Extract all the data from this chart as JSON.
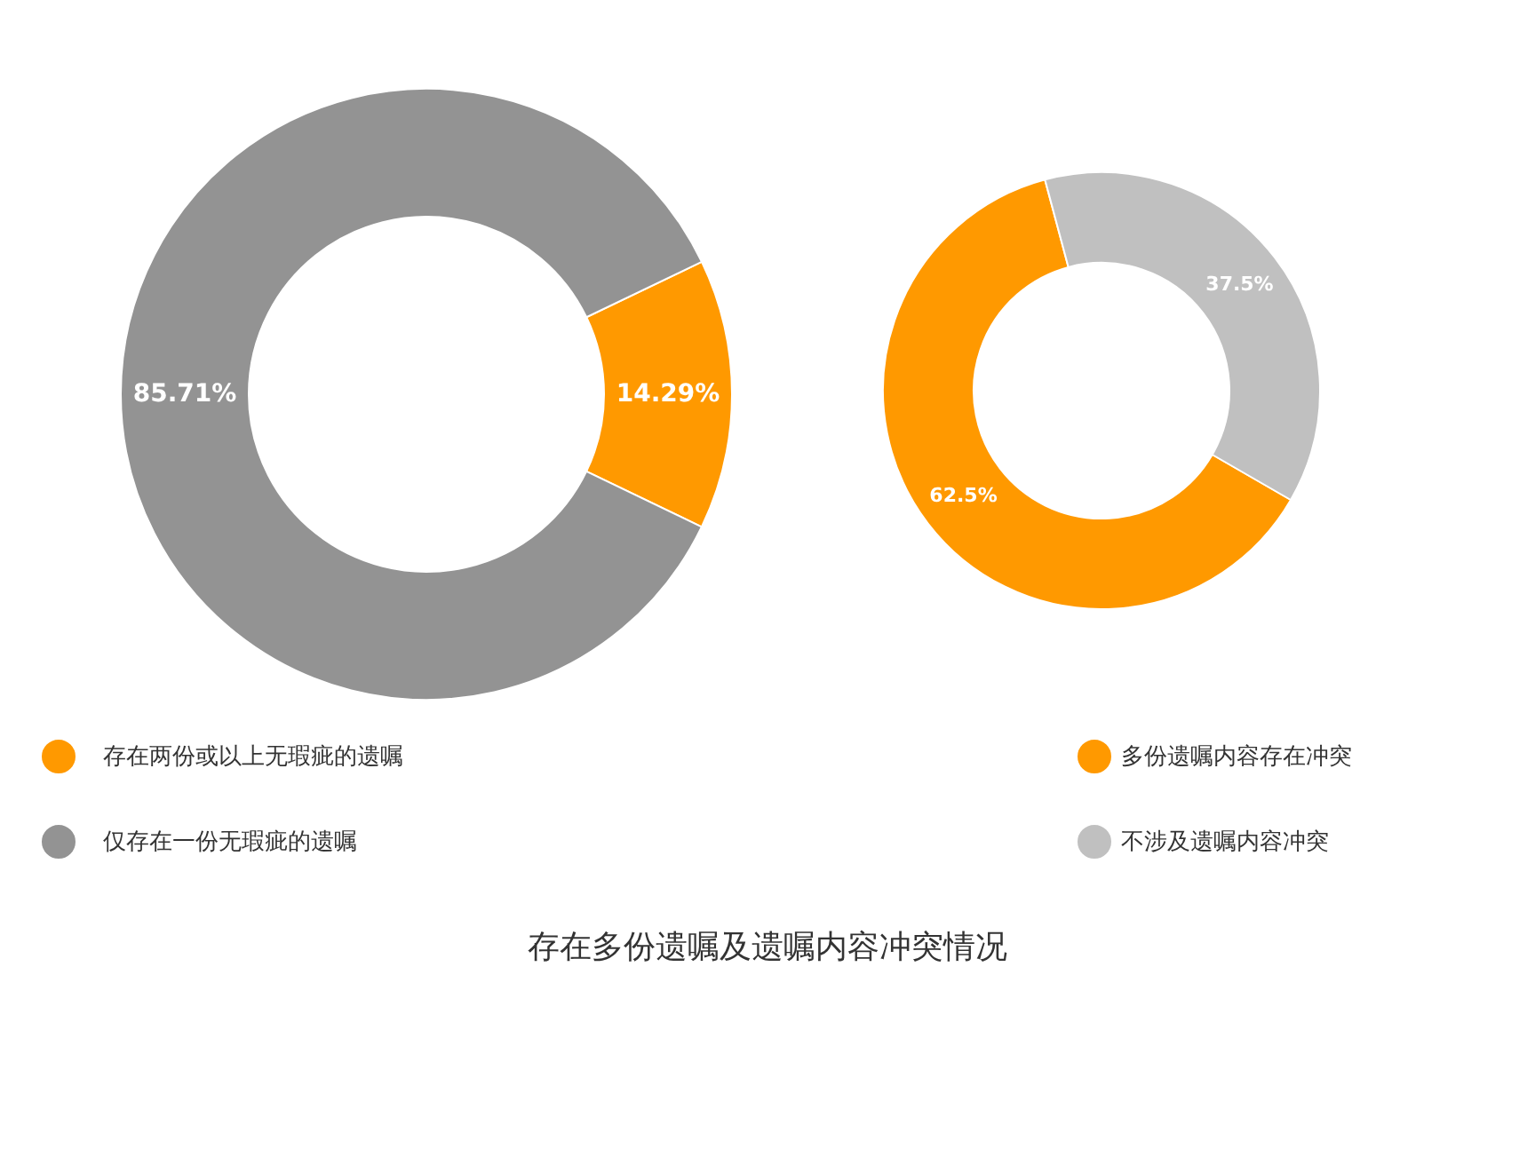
{
  "chart_data": [
    {
      "type": "donut",
      "title": "存在多份遗嘱及遗嘱内容冲突情况",
      "categories": [
        "存在两份或以上无瑕疵的遗嘱",
        "仅存在一份无瑕疵的遗嘱"
      ],
      "values": [
        14.29,
        85.71
      ],
      "colors": [
        "#ff9900",
        "#939393"
      ],
      "value_labels": [
        "14.29%",
        "85.71%"
      ],
      "legend": "bottom left"
    },
    {
      "type": "donut",
      "categories": [
        "多份遗嘱内容存在冲突",
        "不涉及遗嘱内容冲突"
      ],
      "values": [
        62.5,
        37.5
      ],
      "colors": [
        "#ff9900",
        "#c0c0c0"
      ],
      "value_labels": [
        "62.5%",
        "37.5%"
      ],
      "legend": "bottom right"
    }
  ]
}
